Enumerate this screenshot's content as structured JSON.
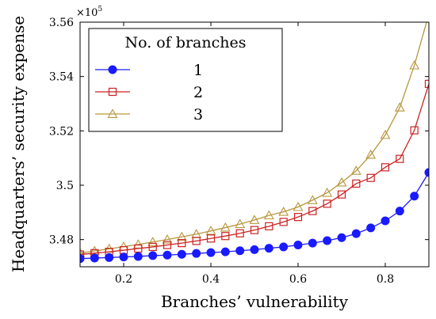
{
  "chart_data": {
    "type": "line",
    "title": "",
    "xlabel": "Branches’ vulnerability",
    "ylabel": "Headquarters’ security expense",
    "y_multiplier_label": "×10",
    "y_multiplier_exp": "5",
    "xlim": [
      0.1,
      0.9
    ],
    "ylim": [
      3.47,
      3.56
    ],
    "xticks": [
      0.2,
      0.4,
      0.6,
      0.8
    ],
    "xtick_labels": [
      "0.2",
      "0.4",
      "0.6",
      "0.8"
    ],
    "yticks": [
      3.48,
      3.5,
      3.52,
      3.54,
      3.56
    ],
    "ytick_labels": [
      "3.48",
      "3.5",
      "3.52",
      "3.54",
      "3.56"
    ],
    "grid": false,
    "legend": {
      "title": "No. of branches",
      "placement": "top-left"
    },
    "x": [
      0.1,
      0.1333,
      0.1667,
      0.2,
      0.2333,
      0.2667,
      0.3,
      0.3333,
      0.3667,
      0.4,
      0.4333,
      0.4667,
      0.5,
      0.5333,
      0.5667,
      0.6,
      0.6333,
      0.6667,
      0.7,
      0.7333,
      0.7667,
      0.8,
      0.8333,
      0.8667,
      0.9
    ],
    "series": [
      {
        "name": "1",
        "color": "#1a1aff",
        "marker": "circle",
        "values": [
          3.473,
          3.4732,
          3.4734,
          3.4736,
          3.4738,
          3.4741,
          3.4743,
          3.4746,
          3.4749,
          3.4752,
          3.4755,
          3.4759,
          3.4763,
          3.4768,
          3.4773,
          3.478,
          3.4787,
          3.4796,
          3.4807,
          3.4822,
          3.4843,
          3.4869,
          3.4905,
          3.496,
          3.5047
        ]
      },
      {
        "name": "2",
        "color": "#cc2222",
        "marker": "square",
        "values": [
          3.4745,
          3.475,
          3.4755,
          3.4761,
          3.4767,
          3.4773,
          3.478,
          3.4787,
          3.4795,
          3.4804,
          3.4813,
          3.4823,
          3.4835,
          3.4849,
          3.4865,
          3.4883,
          3.4905,
          3.4932,
          3.4966,
          3.5006,
          3.5027,
          3.5066,
          3.5097,
          3.5202,
          3.5373
        ]
      },
      {
        "name": "3",
        "color": "#b8963e",
        "marker": "triangle",
        "values": [
          3.475,
          3.4758,
          3.4766,
          3.4774,
          3.4782,
          3.4791,
          3.48,
          3.481,
          3.482,
          3.4832,
          3.4844,
          3.4857,
          3.4872,
          3.4889,
          3.4902,
          3.492,
          3.4945,
          3.4972,
          3.501,
          3.5053,
          3.5112,
          3.5185,
          3.5286,
          3.5441,
          3.563
        ]
      }
    ]
  }
}
